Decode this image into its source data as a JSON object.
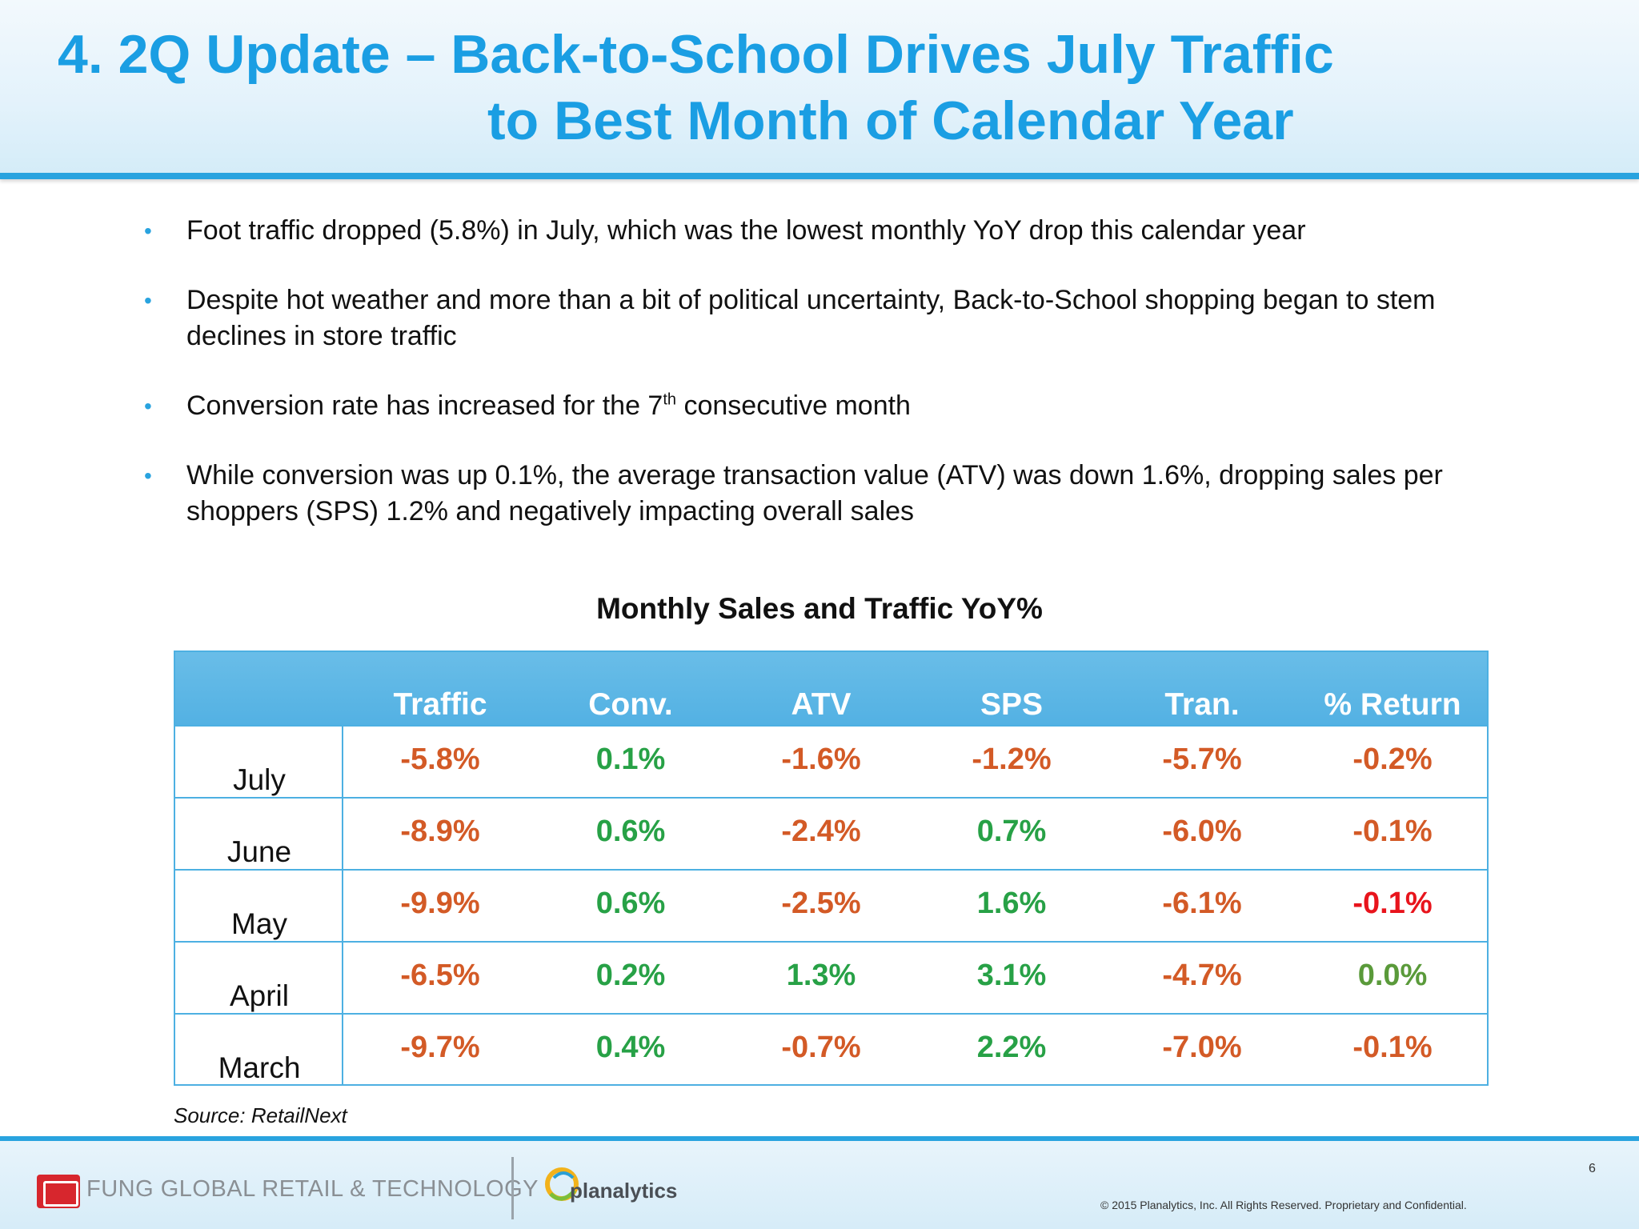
{
  "title": {
    "line1": "4. 2Q Update – Back-to-School Drives July Traffic",
    "line2": "to Best Month of Calendar Year"
  },
  "bullets": [
    {
      "text": "Foot traffic dropped (5.8%) in July, which was the lowest monthly YoY drop this calendar year"
    },
    {
      "text": "Despite hot weather and more than a bit of political uncertainty, Back-to-School shopping began to stem declines in store traffic"
    },
    {
      "pre": "Conversion rate has increased for the 7",
      "sup": "th",
      "post": " consecutive month"
    },
    {
      "text": "While conversion was up 0.1%, the average transaction value (ATV) was down 1.6%, dropping sales per shoppers (SPS) 1.2% and negatively impacting overall sales"
    }
  ],
  "table": {
    "title": "Monthly Sales and Traffic YoY%",
    "columns": [
      "Traffic",
      "Conv.",
      "ATV",
      "SPS",
      "Tran.",
      "% Return"
    ],
    "rows": [
      {
        "label": "July",
        "values": [
          "-5.8%",
          "0.1%",
          "-1.6%",
          "-1.2%",
          "-5.7%",
          "-0.2%"
        ]
      },
      {
        "label": "June",
        "values": [
          "-8.9%",
          "0.6%",
          "-2.4%",
          "0.7%",
          "-6.0%",
          "-0.1%"
        ]
      },
      {
        "label": "May",
        "values": [
          "-9.9%",
          "0.6%",
          "-2.5%",
          "1.6%",
          "-6.1%",
          "-0.1%"
        ]
      },
      {
        "label": "April",
        "values": [
          "-6.5%",
          "0.2%",
          "1.3%",
          "3.1%",
          "-4.7%",
          "0.0%"
        ]
      },
      {
        "label": "March",
        "values": [
          "-9.7%",
          "0.4%",
          "-0.7%",
          "2.2%",
          "-7.0%",
          "-0.1%"
        ]
      }
    ],
    "colors": {
      "negative": "#d35a26",
      "positive": "#27a146",
      "emphasis_negative": "#e8141c",
      "neutral": "#5a9a3a"
    }
  },
  "source": "Source: RetailNext",
  "footer": {
    "fung_logo_icon": "fung-logo-icon",
    "fung_text": "FUNG GLOBAL RETAIL & TECHNOLOGY",
    "planalytics_logo_icon": "planalytics-swirl-icon",
    "planalytics_text": "planalytics",
    "page_number": "6",
    "copyright": "© 2015 Planalytics, Inc. All Rights Reserved. Proprietary and Confidential."
  }
}
